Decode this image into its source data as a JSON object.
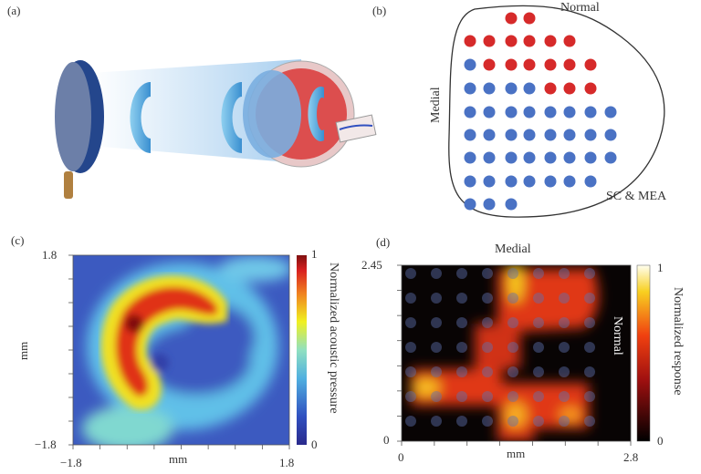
{
  "panels": {
    "a": {
      "label": "(a)"
    },
    "b": {
      "label": "(b)",
      "text_normal": "Normal",
      "text_medial": "Medial",
      "text_sc_mea": "SC & MEA",
      "electrode_rows": [
        {
          "offset": 2,
          "colors": [
            "red",
            "red"
          ]
        },
        {
          "offset": 0,
          "colors": [
            "red",
            "red",
            "red",
            "red",
            "red",
            "red"
          ]
        },
        {
          "offset": 0,
          "colors": [
            "blue",
            "red",
            "red",
            "red",
            "red",
            "red",
            "red"
          ]
        },
        {
          "offset": 0,
          "colors": [
            "blue",
            "blue",
            "blue",
            "blue",
            "red",
            "red",
            "red"
          ]
        },
        {
          "offset": 0,
          "colors": [
            "blue",
            "blue",
            "blue",
            "blue",
            "blue",
            "blue",
            "blue",
            "blue"
          ]
        },
        {
          "offset": 0,
          "colors": [
            "blue",
            "blue",
            "blue",
            "blue",
            "blue",
            "blue",
            "blue",
            "blue"
          ]
        },
        {
          "offset": 0,
          "colors": [
            "blue",
            "blue",
            "blue",
            "blue",
            "blue",
            "blue",
            "blue",
            "blue"
          ]
        },
        {
          "offset": 0,
          "colors": [
            "blue",
            "blue",
            "blue",
            "blue",
            "blue",
            "blue",
            "blue"
          ]
        },
        {
          "offset": 0,
          "colors": [
            "blue",
            "blue",
            "blue"
          ]
        }
      ],
      "colors": {
        "red": "#d62a2a",
        "blue": "#4a72c4"
      }
    },
    "c": {
      "label": "(c)",
      "xlabel": "mm",
      "ylabel": "mm",
      "x_min": "−1.8",
      "x_max": "1.8",
      "y_min": "−1.8",
      "y_max": "1.8",
      "colorbar_label": "Normalized acoustic pressure",
      "colorbar_min": "0",
      "colorbar_max": "1",
      "colormap": "jet"
    },
    "d": {
      "label": "(d)",
      "top_label": "Medial",
      "side_label": "Normal",
      "xlabel": "mm",
      "x_min": "0",
      "x_max": "2.8",
      "y_min": "0",
      "y_max": "2.45",
      "colorbar_label": "Normalized response",
      "colorbar_min": "0",
      "colorbar_max": "1",
      "colormap": "hot"
    }
  }
}
